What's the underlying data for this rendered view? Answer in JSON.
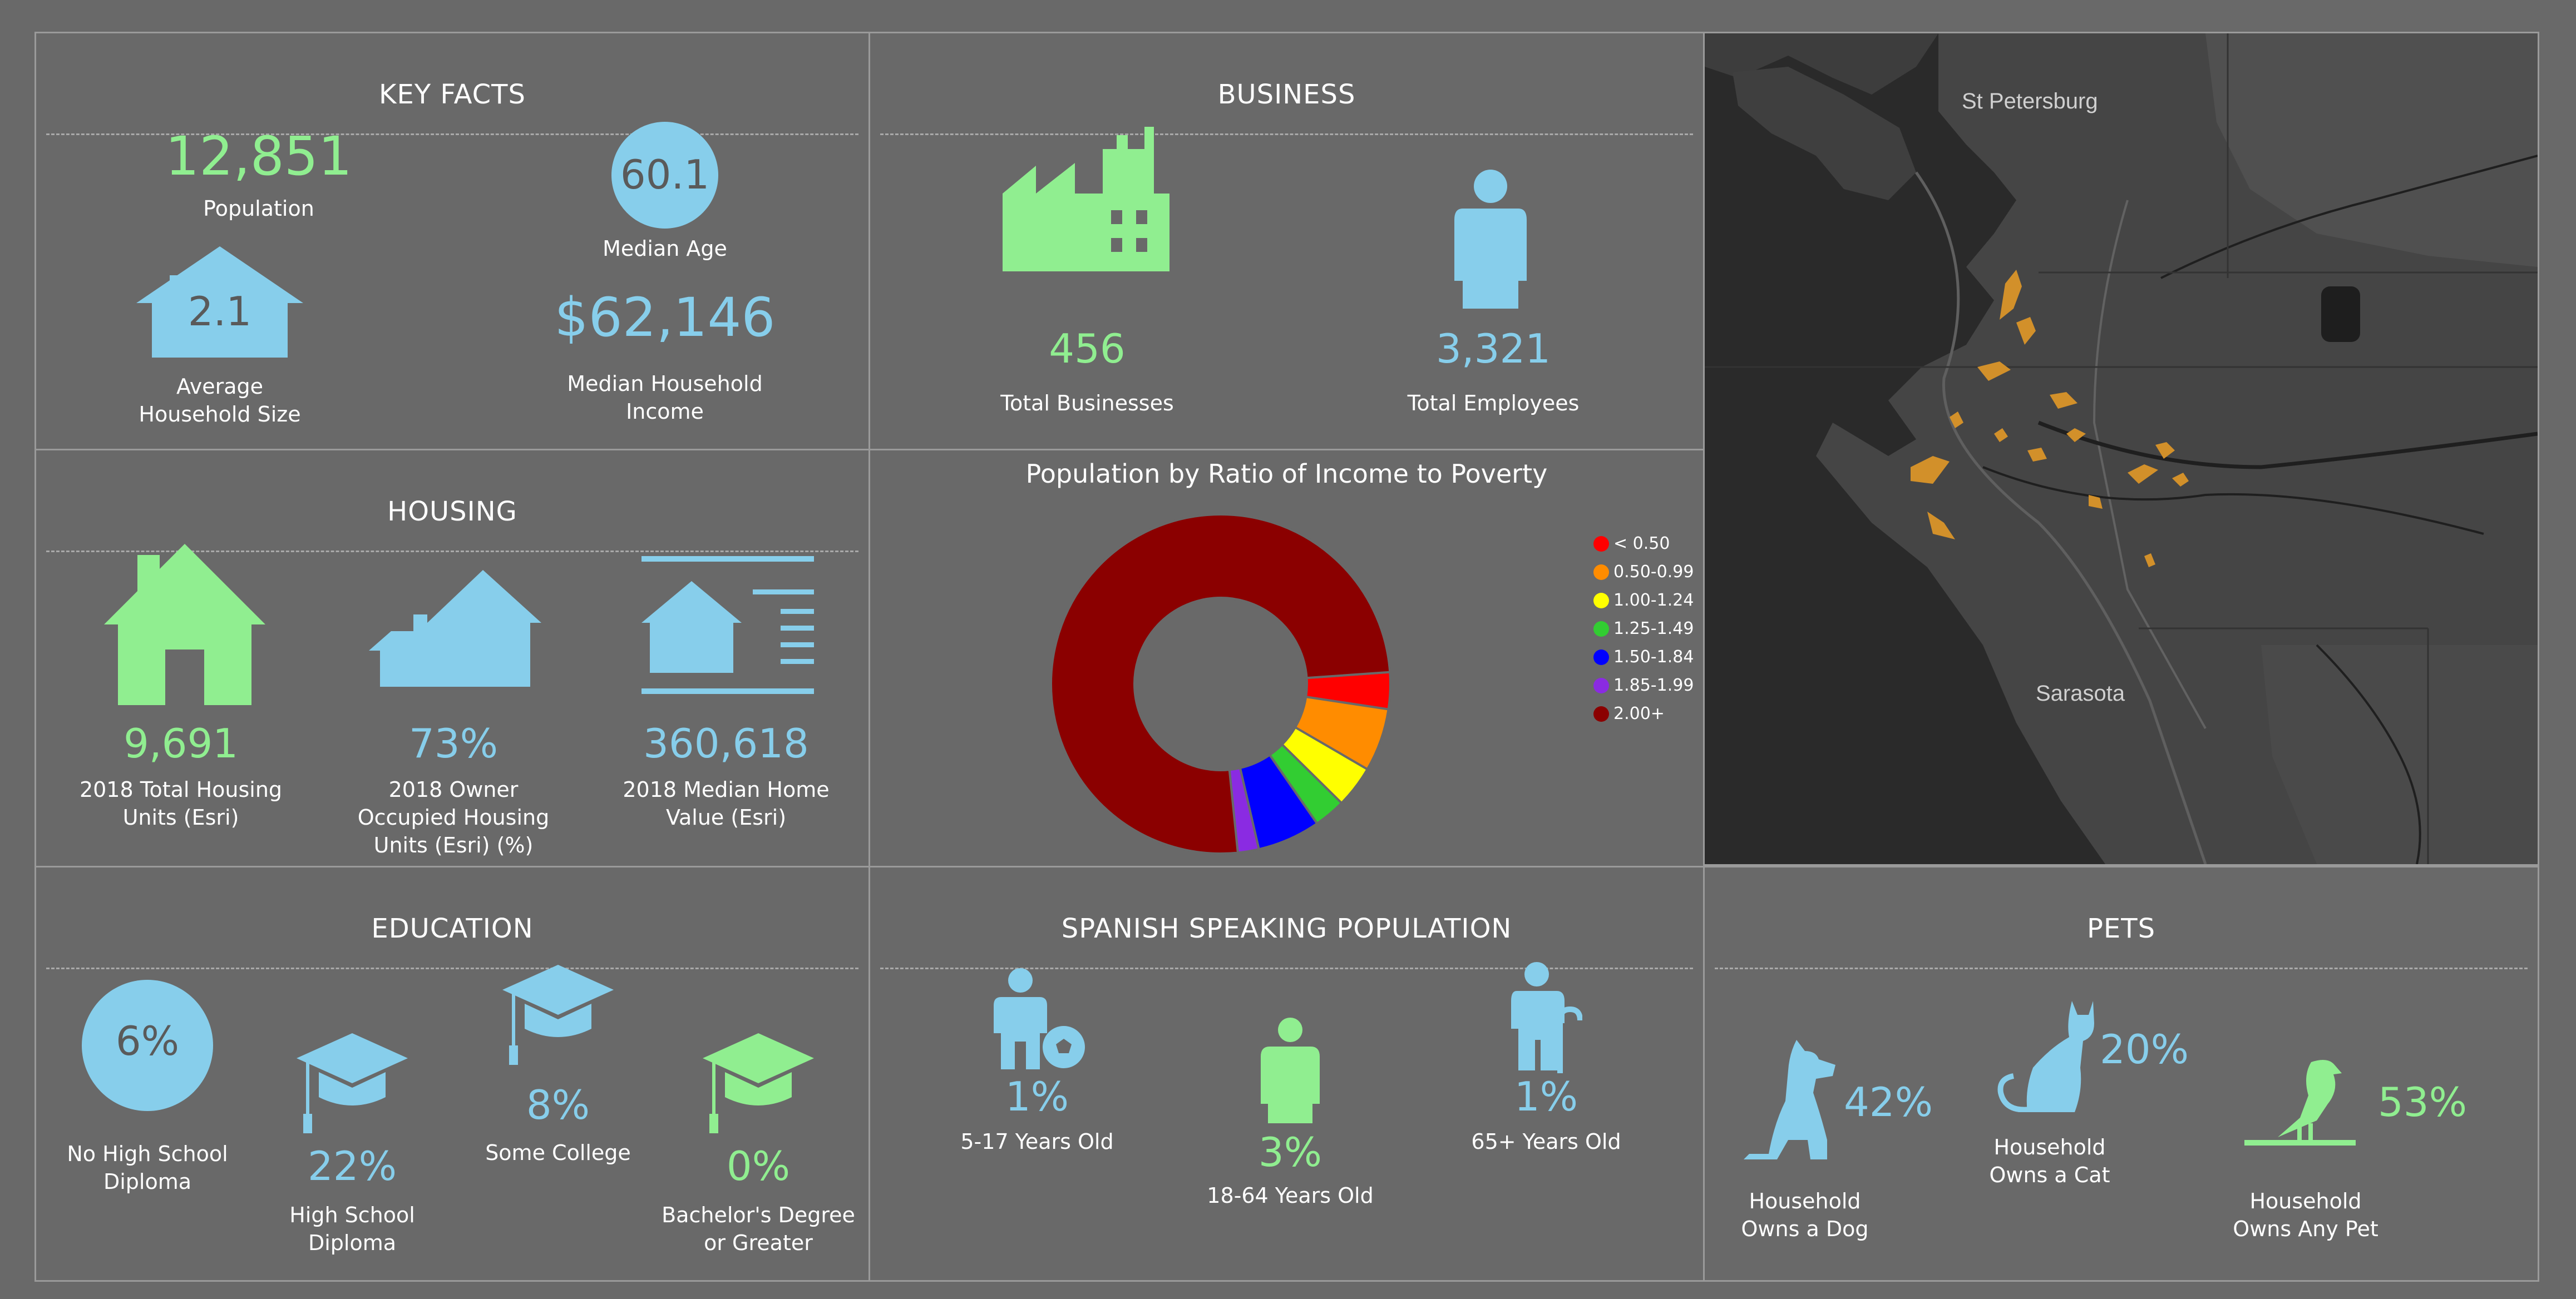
{
  "key_facts": {
    "title": "KEY FACTS",
    "population": {
      "value": "12,851",
      "label": "Population"
    },
    "median_age": {
      "value": "60.1",
      "label": "Median Age"
    },
    "household_size": {
      "value": "2.1",
      "label_line1": "Average",
      "label_line2": "Household Size"
    },
    "median_income": {
      "value": "$62,146",
      "label_line1": "Median Household",
      "label_line2": "Income"
    }
  },
  "business": {
    "title": "BUSINESS",
    "businesses": {
      "value": "456",
      "label": "Total Businesses"
    },
    "employees": {
      "value": "3,321",
      "label": "Total Employees"
    }
  },
  "map": {
    "labels": {
      "city1": "St Petersburg",
      "city2": "Sarasota"
    }
  },
  "housing": {
    "title": "HOUSING",
    "total_units": {
      "value": "9,691",
      "label_line1": "2018 Total Housing",
      "label_line2": "Units (Esri)"
    },
    "owner_occupied": {
      "value": "73%",
      "label_line1": "2018 Owner",
      "label_line2": "Occupied Housing",
      "label_line3": "Units (Esri) (%)"
    },
    "home_value": {
      "value": "360,618",
      "label_line1": "2018 Median Home",
      "label_line2": "Value (Esri)"
    }
  },
  "poverty_chart": {
    "title": "Population by Ratio of Income to Poverty"
  },
  "chart_data": {
    "type": "pie",
    "title": "Population by Ratio of Income to Poverty",
    "categories": [
      "< 0.50",
      "0.50-0.99",
      "1.00-1.24",
      "1.25-1.49",
      "1.50-1.84",
      "1.85-1.99",
      "2.00+"
    ],
    "values": [
      3.5,
      6,
      4,
      3,
      6,
      2,
      75.5
    ],
    "colors": [
      "#ff0000",
      "#ff8c00",
      "#ffff00",
      "#32cd32",
      "#0000ff",
      "#8a2be2",
      "#8b0000"
    ],
    "legend_position": "right"
  },
  "education": {
    "title": "EDUCATION",
    "no_hs": {
      "value": "6%",
      "label_line1": "No High School",
      "label_line2": "Diploma"
    },
    "hs": {
      "value": "22%",
      "label_line1": "High School",
      "label_line2": "Diploma"
    },
    "some_college": {
      "value": "8%",
      "label": "Some College"
    },
    "bachelors": {
      "value": "0%",
      "label_line1": "Bachelor's Degree",
      "label_line2": "or Greater"
    }
  },
  "spanish": {
    "title": "SPANISH SPEAKING POPULATION",
    "age_5_17": {
      "value": "1%",
      "label": "5-17 Years Old"
    },
    "age_18_64": {
      "value": "3%",
      "label": "18-64 Years Old"
    },
    "age_65": {
      "value": "1%",
      "label": "65+ Years Old"
    }
  },
  "pets": {
    "title": "PETS",
    "dog": {
      "value": "42%",
      "label_line1": "Household",
      "label_line2": "Owns a Dog"
    },
    "cat": {
      "value": "20%",
      "label_line1": "Household",
      "label_line2": "Owns a Cat"
    },
    "any": {
      "value": "53%",
      "label_line1": "Household",
      "label_line2": "Owns Any Pet"
    }
  }
}
